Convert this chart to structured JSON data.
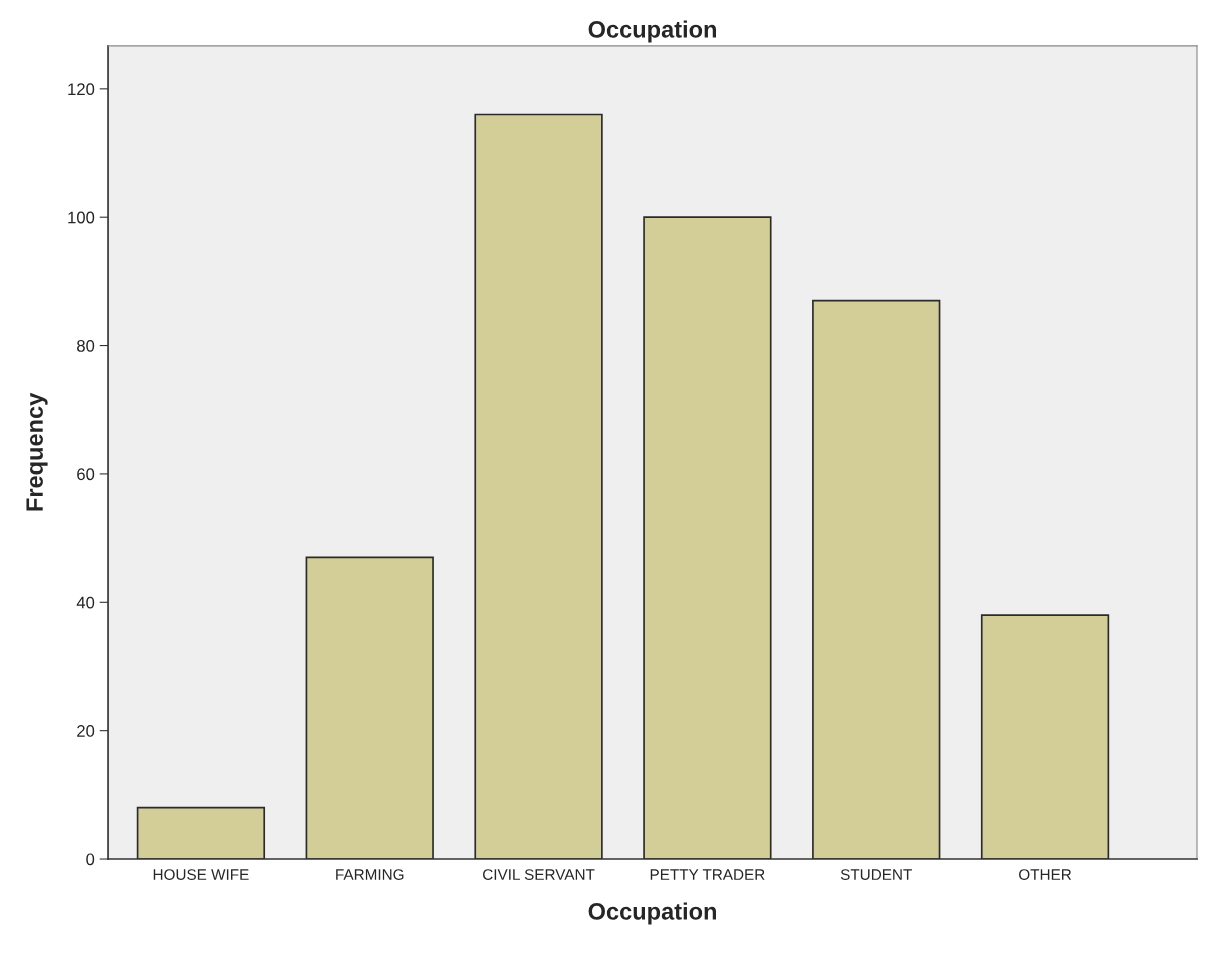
{
  "chart_data": {
    "type": "bar",
    "title": "Occupation",
    "xlabel": "Occupation",
    "ylabel": "Frequency",
    "categories": [
      "HOUSE WIFE",
      "FARMING",
      "CIVIL SERVANT",
      "PETTY TRADER",
      "STUDENT",
      "OTHER"
    ],
    "values": [
      8,
      47,
      116,
      100,
      87,
      38
    ],
    "color": "#d3ce97",
    "ylim": [
      0,
      126.7
    ],
    "yticks": [
      0,
      20,
      40,
      60,
      80,
      100,
      120
    ],
    "grid": false
  }
}
